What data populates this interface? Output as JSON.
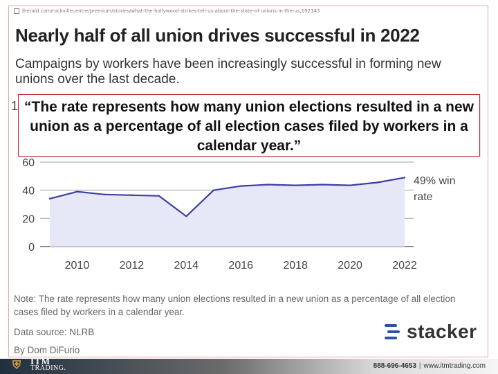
{
  "page": {
    "url": "lherald.com/rockvillecentre/premium/stories/what-the-hollywood-strikes-tell-us-about-the-state-of-unions-in-the-us,192143",
    "cutoff_label": "1"
  },
  "quote_box": {
    "text": "“The rate represents how many union elections resulted in a new union as a percentage of all election cases filed by workers in a calendar year.”"
  },
  "chart_data": {
    "type": "area",
    "title": "Nearly half of all union drives successful in 2022",
    "subtitle": "Campaigns by workers have been increasingly successful in forming new unions over the last decade.",
    "x": [
      2009,
      2010,
      2011,
      2012,
      2013,
      2014,
      2015,
      2016,
      2017,
      2018,
      2019,
      2020,
      2021,
      2022
    ],
    "series": [
      {
        "values": [
          34,
          39,
          37,
          36.5,
          36,
          21.5,
          40,
          43,
          44,
          43.5,
          44,
          43.5,
          45.5,
          49
        ],
        "color": "#3d3fa0",
        "fill": "#e6e8f8"
      }
    ],
    "x_ticks": [
      "2010",
      "2012",
      "2014",
      "2016",
      "2018",
      "2020",
      "2022"
    ],
    "y_ticks": [
      "0",
      "20",
      "40",
      "60"
    ],
    "ylim": [
      0,
      60
    ],
    "grid": true,
    "annotation": {
      "line1": "49% win",
      "line2": "rate"
    }
  },
  "footer_note": {
    "note": "Note: The rate represents how many union elections resulted in a new union as a percentage of all election cases filed by workers in a calendar year.",
    "source": "Data source: NLRB",
    "byline": "By Dom DiFurio"
  },
  "brand": {
    "stacker": "stacker",
    "stacker_color": "#2d54a0",
    "logo_top": "ITM",
    "logo_bottom": "TRADING.",
    "phone": "888-696-4653",
    "separator": "|",
    "website": "www.itmtrading.com"
  }
}
